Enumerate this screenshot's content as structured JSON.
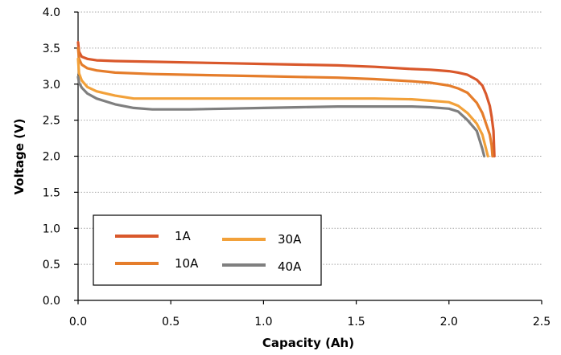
{
  "chart_data": {
    "type": "line",
    "xlabel": "Capacity (Ah)",
    "ylabel": "Voltage (V)",
    "xlim": [
      0,
      2.5
    ],
    "ylim": [
      0,
      4.0
    ],
    "x_ticks": [
      "0.0",
      "0.5",
      "1.0",
      "1.5",
      "2.0",
      "2.5"
    ],
    "y_ticks": [
      "0.0",
      "0.5",
      "1.0",
      "1.5",
      "2.0",
      "2.5",
      "3.0",
      "3.5",
      "4.0"
    ],
    "grid": "horizontal dotted",
    "legend_position": "bottom-left",
    "series": [
      {
        "name": "1A",
        "color": "#d9582b",
        "x": [
          0,
          0.005,
          0.02,
          0.05,
          0.1,
          0.2,
          0.4,
          0.6,
          0.8,
          1.0,
          1.2,
          1.4,
          1.6,
          1.8,
          1.9,
          2.0,
          2.05,
          2.1,
          2.15,
          2.18,
          2.2,
          2.22,
          2.23,
          2.24,
          2.245
        ],
        "y": [
          3.58,
          3.45,
          3.38,
          3.35,
          3.33,
          3.32,
          3.31,
          3.3,
          3.29,
          3.28,
          3.27,
          3.26,
          3.24,
          3.21,
          3.2,
          3.18,
          3.16,
          3.13,
          3.06,
          2.98,
          2.86,
          2.7,
          2.55,
          2.35,
          2.0
        ]
      },
      {
        "name": "10A",
        "color": "#e57d2b",
        "x": [
          0,
          0.005,
          0.02,
          0.05,
          0.1,
          0.2,
          0.4,
          0.6,
          0.8,
          1.0,
          1.2,
          1.4,
          1.6,
          1.8,
          1.9,
          2.0,
          2.05,
          2.1,
          2.15,
          2.18,
          2.2,
          2.22,
          2.23,
          2.235
        ],
        "y": [
          3.5,
          3.35,
          3.27,
          3.22,
          3.19,
          3.16,
          3.14,
          3.13,
          3.12,
          3.11,
          3.1,
          3.09,
          3.07,
          3.04,
          3.02,
          2.98,
          2.94,
          2.88,
          2.74,
          2.6,
          2.45,
          2.3,
          2.15,
          2.0
        ]
      },
      {
        "name": "30A",
        "color": "#f2a13a",
        "x": [
          0,
          0.005,
          0.02,
          0.05,
          0.1,
          0.2,
          0.3,
          0.4,
          0.6,
          0.8,
          1.0,
          1.2,
          1.4,
          1.6,
          1.8,
          1.9,
          2.0,
          2.05,
          2.1,
          2.15,
          2.18,
          2.2,
          2.21
        ],
        "y": [
          3.35,
          3.15,
          3.05,
          2.96,
          2.9,
          2.84,
          2.8,
          2.8,
          2.8,
          2.8,
          2.8,
          2.8,
          2.8,
          2.8,
          2.79,
          2.77,
          2.75,
          2.7,
          2.6,
          2.45,
          2.3,
          2.1,
          2.0
        ]
      },
      {
        "name": "40A",
        "color": "#7f7f7f",
        "x": [
          0,
          0.005,
          0.02,
          0.05,
          0.1,
          0.2,
          0.3,
          0.4,
          0.6,
          0.8,
          1.0,
          1.2,
          1.4,
          1.6,
          1.8,
          1.9,
          2.0,
          2.05,
          2.1,
          2.15,
          2.18,
          2.19
        ],
        "y": [
          3.1,
          3.02,
          2.95,
          2.87,
          2.8,
          2.72,
          2.67,
          2.65,
          2.65,
          2.66,
          2.67,
          2.68,
          2.69,
          2.69,
          2.69,
          2.68,
          2.66,
          2.62,
          2.5,
          2.35,
          2.1,
          2.0
        ]
      }
    ]
  }
}
